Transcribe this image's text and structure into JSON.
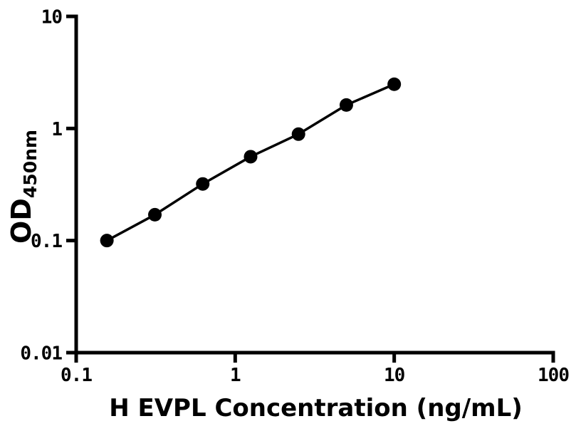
{
  "chart_data": {
    "type": "scatter",
    "title": "",
    "xlabel": "H EVPL Concentration (ng/mL)",
    "ylabel_main": "OD",
    "ylabel_sub": "450nm",
    "x_scale": "log",
    "y_scale": "log",
    "xlim": [
      0.1,
      100
    ],
    "ylim": [
      0.01,
      10
    ],
    "x_ticks": [
      0.1,
      1,
      10,
      100
    ],
    "x_tick_labels": [
      "0.1",
      "1",
      "10",
      "100"
    ],
    "y_ticks": [
      0.01,
      0.1,
      1,
      10
    ],
    "y_tick_labels": [
      "0.01",
      "0.1",
      "1",
      "10"
    ],
    "grid": false,
    "legend": false,
    "series": [
      {
        "x": [
          0.156,
          0.3125,
          0.625,
          1.25,
          2.5,
          5,
          10
        ],
        "y": [
          0.1,
          0.17,
          0.32,
          0.56,
          0.89,
          1.62,
          2.48
        ],
        "marker": "circle",
        "line": "solid",
        "color": "#000000"
      }
    ]
  },
  "colors": {
    "foreground": "#000000",
    "background": "#ffffff"
  }
}
